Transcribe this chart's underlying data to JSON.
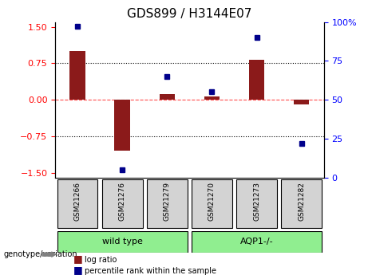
{
  "title": "GDS899 / H3144E07",
  "samples": [
    "GSM21266",
    "GSM21276",
    "GSM21279",
    "GSM21270",
    "GSM21273",
    "GSM21282"
  ],
  "log_ratio": [
    1.0,
    -1.05,
    0.12,
    0.07,
    0.82,
    -0.1
  ],
  "percentile_rank": [
    97,
    5,
    65,
    55,
    90,
    22
  ],
  "groups": [
    {
      "label": "wild type",
      "samples": [
        "GSM21266",
        "GSM21276",
        "GSM21279"
      ],
      "color": "#90ee90"
    },
    {
      "label": "AQP1-/-",
      "samples": [
        "GSM21270",
        "GSM21273",
        "GSM21282"
      ],
      "color": "#90ee90"
    }
  ],
  "bar_color": "#8B1A1A",
  "dot_color": "#00008B",
  "ylim_left": [
    -1.6,
    1.6
  ],
  "ylim_right": [
    0,
    100
  ],
  "yticks_left": [
    -1.5,
    -0.75,
    0,
    0.75,
    1.5
  ],
  "yticks_right": [
    0,
    25,
    50,
    75,
    100
  ],
  "hlines": [
    0.75,
    0,
    -0.75
  ],
  "background_color": "#ffffff",
  "grid_color": "#000000",
  "sample_box_color": "#d3d3d3",
  "legend_log_ratio": "log ratio",
  "legend_percentile": "percentile rank within the sample"
}
